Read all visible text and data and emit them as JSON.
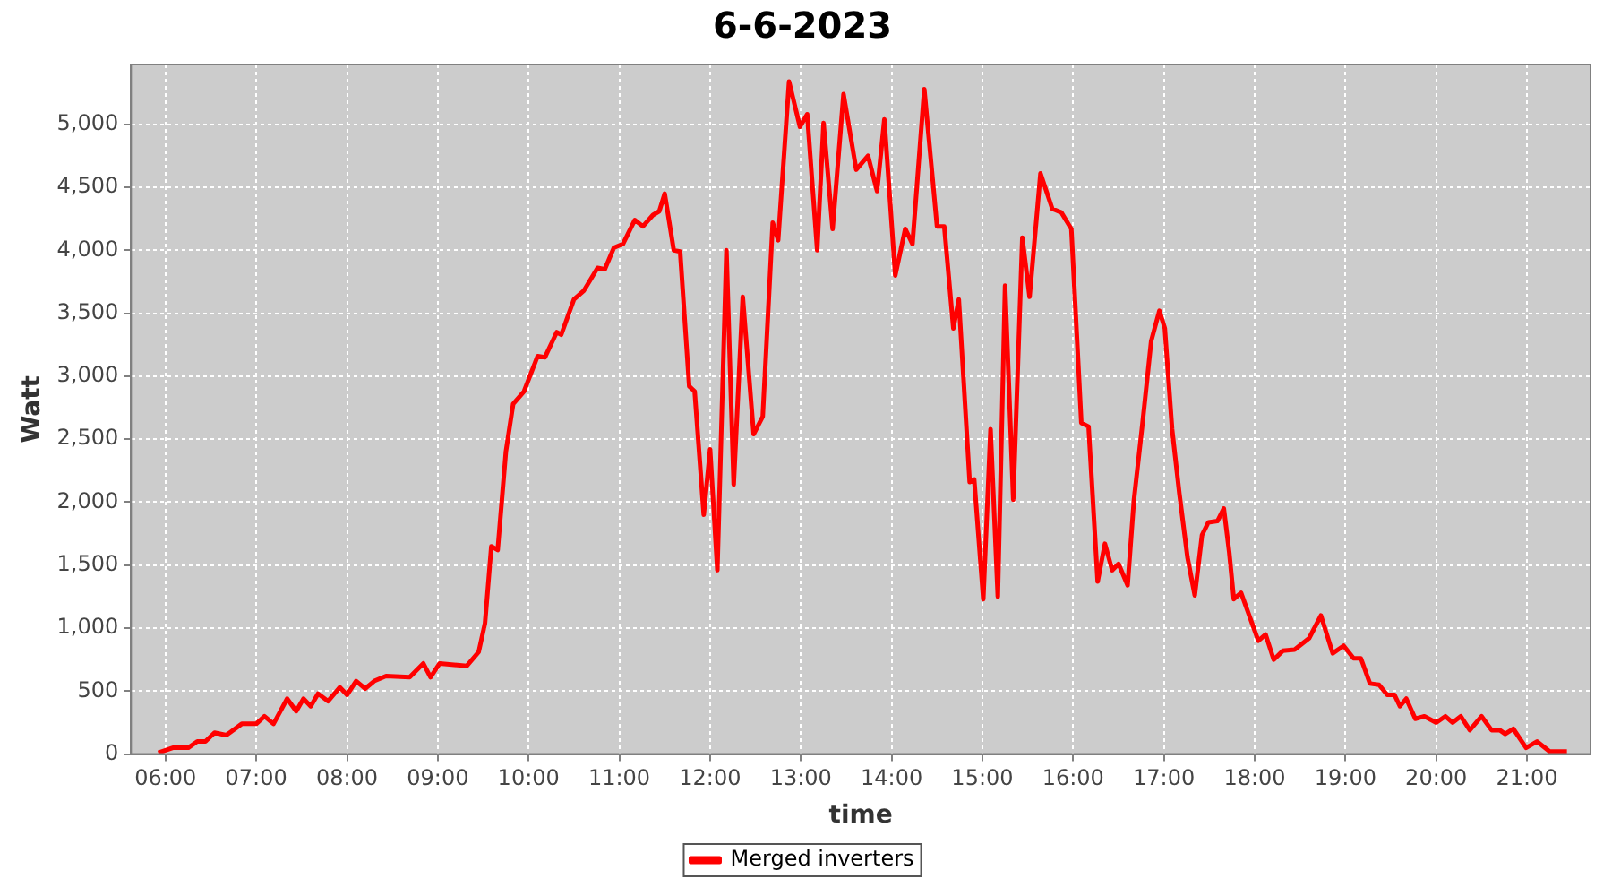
{
  "chart_data": {
    "type": "line",
    "title": "6-6-2023",
    "xlabel": "time",
    "ylabel": "Watt",
    "x": [
      5.92,
      6.08,
      6.25,
      6.35,
      6.44,
      6.54,
      6.67,
      6.84,
      7.0,
      7.09,
      7.19,
      7.34,
      7.44,
      7.52,
      7.6,
      7.68,
      7.79,
      7.92,
      8.0,
      8.1,
      8.2,
      8.3,
      8.43,
      8.69,
      8.84,
      8.92,
      9.02,
      9.32,
      9.45,
      9.52,
      9.59,
      9.66,
      9.75,
      9.83,
      9.95,
      10.1,
      10.18,
      10.31,
      10.36,
      10.5,
      10.61,
      10.76,
      10.84,
      10.94,
      11.04,
      11.17,
      11.26,
      11.37,
      11.44,
      11.5,
      11.6,
      11.67,
      11.77,
      11.83,
      11.93,
      12.0,
      12.08,
      12.18,
      12.26,
      12.36,
      12.48,
      12.58,
      12.69,
      12.75,
      12.87,
      12.99,
      13.07,
      13.18,
      13.25,
      13.35,
      13.47,
      13.61,
      13.74,
      13.84,
      13.92,
      14.04,
      14.15,
      14.23,
      14.36,
      14.5,
      14.58,
      14.68,
      14.74,
      14.86,
      14.91,
      15.01,
      15.09,
      15.17,
      15.25,
      15.34,
      15.44,
      15.52,
      15.64,
      15.77,
      15.87,
      15.98,
      16.09,
      16.17,
      16.27,
      16.35,
      16.43,
      16.5,
      16.6,
      16.67,
      16.76,
      16.86,
      16.95,
      17.01,
      17.09,
      17.17,
      17.26,
      17.34,
      17.42,
      17.49,
      17.59,
      17.66,
      17.72,
      17.77,
      17.85,
      18.04,
      18.12,
      18.21,
      18.31,
      18.44,
      18.6,
      18.73,
      18.86,
      18.98,
      19.09,
      19.17,
      19.27,
      19.37,
      19.46,
      19.54,
      19.6,
      19.67,
      19.77,
      19.87,
      20.0,
      20.1,
      20.18,
      20.27,
      20.37,
      20.5,
      20.61,
      20.7,
      20.76,
      20.85,
      20.99,
      21.11,
      21.25,
      21.44
    ],
    "series": [
      {
        "name": "Merged inverters",
        "color": "#ff0000",
        "values": [
          10,
          50,
          50,
          100,
          100,
          170,
          150,
          240,
          240,
          300,
          240,
          440,
          340,
          440,
          380,
          480,
          420,
          530,
          470,
          580,
          520,
          580,
          620,
          610,
          720,
          610,
          720,
          700,
          810,
          1040,
          1650,
          1620,
          2400,
          2780,
          2880,
          3160,
          3150,
          3350,
          3330,
          3610,
          3680,
          3860,
          3850,
          4020,
          4050,
          4240,
          4190,
          4280,
          4310,
          4450,
          4000,
          3990,
          2920,
          2880,
          1900,
          2420,
          1460,
          4000,
          2140,
          3630,
          2540,
          2680,
          4220,
          4080,
          5340,
          4980,
          5080,
          4000,
          5010,
          4170,
          5240,
          4640,
          4750,
          4470,
          5040,
          3800,
          4170,
          4050,
          5280,
          4190,
          4190,
          3380,
          3610,
          2160,
          2180,
          1230,
          2580,
          1250,
          3720,
          2020,
          4100,
          3630,
          4610,
          4330,
          4300,
          4170,
          2630,
          2600,
          1370,
          1670,
          1460,
          1510,
          1340,
          2020,
          2600,
          3280,
          3520,
          3380,
          2580,
          2070,
          1560,
          1260,
          1740,
          1840,
          1850,
          1950,
          1600,
          1230,
          1280,
          900,
          950,
          750,
          820,
          830,
          920,
          1100,
          800,
          860,
          760,
          760,
          560,
          550,
          470,
          470,
          380,
          440,
          280,
          300,
          250,
          300,
          250,
          300,
          190,
          300,
          190,
          190,
          160,
          200,
          50,
          100,
          20,
          20
        ]
      }
    ],
    "xlim": [
      5.62,
      21.7
    ],
    "xticks": [
      {
        "value": 6,
        "label": "06:00"
      },
      {
        "value": 7,
        "label": "07:00"
      },
      {
        "value": 8,
        "label": "08:00"
      },
      {
        "value": 9,
        "label": "09:00"
      },
      {
        "value": 10,
        "label": "10:00"
      },
      {
        "value": 11,
        "label": "11:00"
      },
      {
        "value": 12,
        "label": "12:00"
      },
      {
        "value": 13,
        "label": "13:00"
      },
      {
        "value": 14,
        "label": "14:00"
      },
      {
        "value": 15,
        "label": "15:00"
      },
      {
        "value": 16,
        "label": "16:00"
      },
      {
        "value": 17,
        "label": "17:00"
      },
      {
        "value": 18,
        "label": "18:00"
      },
      {
        "value": 19,
        "label": "19:00"
      },
      {
        "value": 20,
        "label": "20:00"
      },
      {
        "value": 21,
        "label": "21:00"
      }
    ],
    "ylim": [
      0,
      5475
    ],
    "yticks": [
      0,
      500,
      {
        "value": 1000,
        "label": "1,000"
      },
      {
        "value": 1500,
        "label": "1,500"
      },
      {
        "value": 2000,
        "label": "2,000"
      },
      {
        "value": 2500,
        "label": "2,500"
      },
      {
        "value": 3000,
        "label": "3,000"
      },
      {
        "value": 3500,
        "label": "3,500"
      },
      {
        "value": 4000,
        "label": "4,000"
      },
      {
        "value": 4500,
        "label": "4,500"
      },
      {
        "value": 5000,
        "label": "5,000"
      }
    ],
    "grid": true,
    "legend": "bottom",
    "marker": "none",
    "line_style": "solid"
  }
}
